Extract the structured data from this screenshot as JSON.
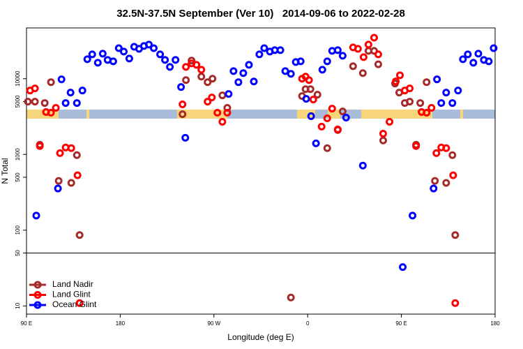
{
  "chart_data": {
    "type": "scatter",
    "title": "32.5N-37.5N September (Ver 10)   2014-09-06 to 2022-02-28",
    "xlabel": "Longitude (deg E)",
    "ylabel": "N Total",
    "log_y": true,
    "xlim": [
      90,
      540
    ],
    "ylim": [
      7.8,
      46800
    ],
    "xticks": [
      {
        "value": 90,
        "label": "90 E"
      },
      180,
      {
        "value": 270,
        "label": "90 W"
      },
      {
        "value": 360,
        "label": "0"
      },
      {
        "value": 450,
        "label": "90 E"
      },
      {
        "value": 540,
        "label": "180"
      }
    ],
    "yticks": [
      10,
      50,
      100,
      500,
      1000,
      5000,
      10000
    ],
    "hline": 50,
    "legend": "bottom-left",
    "series": [
      {
        "name": "Land Nadir",
        "color": "#a52a2a",
        "x": [
          91.3,
          98.1,
          102.8,
          107.5,
          113.5,
          120.9,
          133.0,
          138.4,
          141.0,
          239.8,
          243.1,
          248.5,
          257.9,
          263.9,
          268.6,
          278.1,
          282.8,
          343.9,
          354.6,
          358.0,
          362.7,
          369.4,
          378.8,
          388.9,
          393.6,
          403.6,
          413.0,
          418.4,
          423.8,
          427.8,
          432.5,
          443.9,
          447.9,
          453.3,
          458.0,
          464.1,
          468.1,
          474.2,
          482.2,
          493.0,
          499.0,
          501.7
        ],
        "values": [
          4980,
          4980,
          1343,
          4775,
          9000,
          448,
          421,
          980,
          86.3,
          3400,
          9590,
          17340,
          10650,
          9000,
          10000,
          6030,
          4120,
          12.9,
          5900,
          7280,
          7280,
          6150,
          1210,
          2100,
          3700,
          14620,
          11840,
          23300,
          23300,
          15500,
          1530,
          8630,
          6560,
          4775,
          4980,
          1343,
          4775,
          9000,
          448,
          421,
          980,
          86.3
        ]
      },
      {
        "name": "Land Glint",
        "color": "#ff0000",
        "x": [
          93.4,
          98.1,
          102.8,
          108.8,
          113.5,
          118.2,
          122.2,
          127.6,
          133.0,
          139.0,
          141.0,
          239.8,
          243.1,
          248.5,
          253.2,
          257.9,
          263.9,
          268.0,
          273.3,
          278.1,
          282.8,
          354.6,
          358.0,
          361.3,
          365.4,
          373.4,
          378.8,
          383.5,
          388.9,
          403.6,
          408.3,
          413.7,
          418.4,
          423.8,
          427.8,
          432.5,
          438.6,
          444.6,
          448.6,
          453.3,
          458.0,
          464.1,
          469.4,
          474.2,
          478.9,
          483.6,
          488.3,
          493.0,
          499.7,
          501.7
        ],
        "values": [
          6980,
          7440,
          1290,
          3630,
          3550,
          4120,
          1040,
          1235,
          1210,
          531,
          10.9,
          4580,
          14300,
          15900,
          15250,
          13150,
          4980,
          5650,
          3550,
          2700,
          3550,
          10000,
          10650,
          9590,
          5310,
          2330,
          3000,
          4030,
          2140,
          25900,
          24800,
          19250,
          28200,
          34750,
          20950,
          1880,
          2700,
          9200,
          11100,
          6980,
          7440,
          1290,
          3630,
          3550,
          4120,
          1040,
          1235,
          1210,
          531,
          10.9
        ]
      },
      {
        "name": "Ocean Glint",
        "color": "#0000ff",
        "x": [
          99.4,
          120.2,
          123.6,
          127.6,
          132.3,
          138.4,
          143.7,
          148.4,
          153.1,
          158.5,
          163.2,
          167.9,
          173.3,
          178.6,
          183.4,
          188.7,
          193.4,
          198.1,
          202.8,
          207.5,
          212.2,
          218.3,
          223.0,
          227.7,
          233.1,
          238.4,
          242.5,
          284.1,
          288.8,
          293.5,
          298.2,
          303.6,
          308.3,
          313.6,
          318.3,
          323.7,
          328.4,
          333.8,
          338.5,
          343.9,
          348.6,
          353.3,
          358.6,
          363.3,
          368.0,
          374.1,
          378.8,
          383.5,
          388.9,
          393.6,
          396.9,
          413.0,
          451.3,
          460.7,
          480.9,
          484.2,
          488.3,
          493.0,
          499.0,
          504.4,
          509.1,
          513.8,
          519.1,
          523.9,
          529.2,
          533.9,
          538.6
        ],
        "values": [
          156,
          355,
          9800,
          4775,
          6560,
          4775,
          6980,
          18070,
          20950,
          16250,
          21400,
          17700,
          16950,
          25300,
          22800,
          18450,
          26400,
          24800,
          27000,
          28200,
          25300,
          20950,
          17700,
          14300,
          17700,
          7760,
          1660,
          6290,
          12600,
          9000,
          11840,
          15250,
          9180,
          20950,
          25300,
          22800,
          23800,
          23800,
          12600,
          11590,
          16600,
          16950,
          5420,
          3200,
          1400,
          13150,
          16950,
          23300,
          23800,
          20100,
          3060,
          713,
          32.6,
          156,
          355,
          9800,
          4775,
          6560,
          4775,
          6980,
          18070,
          20950,
          16250,
          21400,
          17700,
          16950,
          25300
        ]
      }
    ]
  }
}
